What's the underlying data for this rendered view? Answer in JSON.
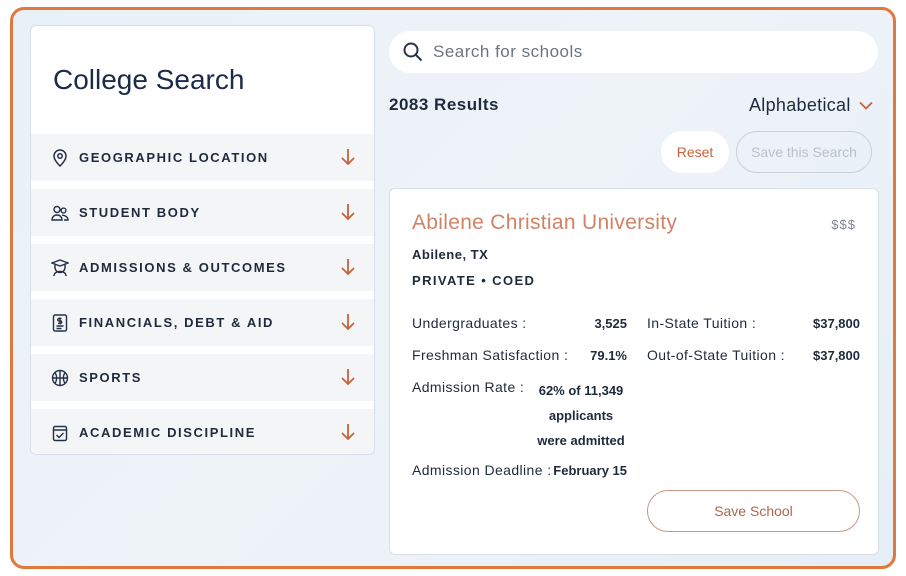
{
  "sidebar": {
    "title": "College Search",
    "filters": [
      {
        "label": "GEOGRAPHIC LOCATION",
        "icon": "map-pin-icon"
      },
      {
        "label": "STUDENT BODY",
        "icon": "people-icon"
      },
      {
        "label": "ADMISSIONS & OUTCOMES",
        "icon": "graduate-icon"
      },
      {
        "label": "FINANCIALS, DEBT & AID",
        "icon": "document-dollar-icon"
      },
      {
        "label": "SPORTS",
        "icon": "basketball-icon"
      },
      {
        "label": "ACADEMIC DISCIPLINE",
        "icon": "calendar-check-icon"
      }
    ]
  },
  "search": {
    "placeholder": "Search for schools",
    "value": ""
  },
  "results": {
    "count_label": "2083 Results",
    "sort_label": "Alphabetical"
  },
  "actions": {
    "reset_label": "Reset",
    "save_search_label": "Save this Search"
  },
  "school": {
    "name": "Abilene Christian University",
    "price": "$$$",
    "city": "Abilene, TX",
    "type": "PRIVATE • COED",
    "stats": {
      "undergrad_label": "Undergraduates :",
      "undergrad_value": "3,525",
      "satisfaction_label": "Freshman Satisfaction :",
      "satisfaction_value": "79.1%",
      "admission_rate_label": "Admission Rate :",
      "admission_rate_value": "62% of 11,349 applicants were admitted",
      "deadline_label": "Admission Deadline :",
      "deadline_value": "February 15",
      "instate_label": "In-State Tuition :",
      "instate_value": "$37,800",
      "outstate_label": "Out-of-State Tuition :",
      "outstate_value": "$37,800"
    },
    "save_label": "Save School"
  },
  "colors": {
    "accent": "#c7623a",
    "school_name": "#d08266",
    "frame_border": "#e07a3c"
  }
}
